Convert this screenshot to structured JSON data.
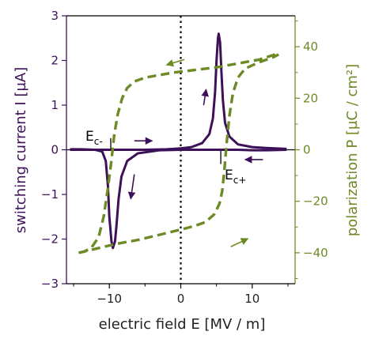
{
  "chart_data": {
    "type": "line",
    "title": "",
    "xlabel": "electric field E [MV / m]",
    "ylabel_left": "switching current I [µA]",
    "ylabel_right": "polarization P [µC / cm²]",
    "xlim": [
      -16,
      16
    ],
    "ylim_left": [
      -3,
      3
    ],
    "ylim_right": [
      -52,
      52
    ],
    "x_ticks": [
      -10,
      0,
      10
    ],
    "x_tick_labels": [
      "−10",
      "0",
      "10"
    ],
    "y_left_ticks": [
      -3,
      -2,
      -1,
      0,
      1,
      2,
      3
    ],
    "y_left_tick_labels": [
      "−3",
      "−2",
      "−1",
      "0",
      "1",
      "2",
      "3"
    ],
    "y_right_ticks": [
      -40,
      -20,
      0,
      20,
      40
    ],
    "y_right_tick_labels": [
      "−40",
      "−20",
      "0",
      "20",
      "40"
    ],
    "grid": false,
    "colors": {
      "current": "#3d1159",
      "polarization": "#6e8a25",
      "axis": "#000000"
    },
    "vline_x": 0,
    "annotations": {
      "ec_minus": "E",
      "ec_minus_sub": "c-",
      "ec_plus": "E",
      "ec_plus_sub": "c+"
    },
    "series": [
      {
        "axis": "left",
        "style": "solid",
        "points": [
          [
            -15.5,
            0.01
          ],
          [
            -14,
            0.01
          ],
          [
            -12,
            0.0
          ],
          [
            -11,
            -0.04
          ],
          [
            -10.5,
            -0.25
          ],
          [
            -10.2,
            -0.8
          ],
          [
            -10.0,
            -1.5
          ],
          [
            -9.7,
            -2.05
          ],
          [
            -9.5,
            -2.2
          ],
          [
            -9.2,
            -2.05
          ],
          [
            -9.0,
            -1.7
          ],
          [
            -8.7,
            -1.1
          ],
          [
            -8.3,
            -0.6
          ],
          [
            -7.5,
            -0.25
          ],
          [
            -6,
            -0.08
          ],
          [
            -3,
            -0.01
          ],
          [
            0,
            0.0
          ],
          [
            3,
            0.0
          ],
          [
            5,
            0.0
          ],
          [
            6,
            0.0
          ],
          [
            8,
            0.0
          ],
          [
            10,
            -0.01
          ],
          [
            12,
            -0.01
          ],
          [
            14.8,
            0.0
          ]
        ]
      },
      {
        "axis": "left",
        "style": "solid",
        "points": [
          [
            -15.5,
            0.0
          ],
          [
            -12,
            0.0
          ],
          [
            -8,
            0.0
          ],
          [
            -5,
            0.0
          ],
          [
            -2,
            0.01
          ],
          [
            0,
            0.03
          ],
          [
            1.5,
            0.06
          ],
          [
            3,
            0.15
          ],
          [
            4,
            0.35
          ],
          [
            4.5,
            0.7
          ],
          [
            4.8,
            1.3
          ],
          [
            5.0,
            2.0
          ],
          [
            5.2,
            2.5
          ],
          [
            5.3,
            2.6
          ],
          [
            5.5,
            2.4
          ],
          [
            5.7,
            1.7
          ],
          [
            5.9,
            1.1
          ],
          [
            6.2,
            0.6
          ],
          [
            6.8,
            0.3
          ],
          [
            8,
            0.12
          ],
          [
            10,
            0.06
          ],
          [
            12,
            0.04
          ],
          [
            14.8,
            0.02
          ]
        ]
      },
      {
        "axis": "right",
        "style": "dashed",
        "points": [
          [
            13.2,
            37
          ],
          [
            11,
            35
          ],
          [
            8,
            33.5
          ],
          [
            5,
            32
          ],
          [
            2,
            31
          ],
          [
            -1,
            30
          ],
          [
            -3,
            29
          ],
          [
            -5,
            28
          ],
          [
            -6.5,
            26.5
          ],
          [
            -7.5,
            24
          ],
          [
            -8.2,
            20
          ],
          [
            -8.8,
            14
          ],
          [
            -9.3,
            6
          ],
          [
            -9.7,
            -4
          ],
          [
            -10.2,
            -15
          ],
          [
            -10.8,
            -26
          ],
          [
            -11.5,
            -34
          ],
          [
            -12.5,
            -38
          ],
          [
            -13.5,
            -39.5
          ],
          [
            -14.3,
            -40
          ]
        ]
      },
      {
        "axis": "right",
        "style": "dashed",
        "points": [
          [
            -14.3,
            -40
          ],
          [
            -12,
            -38.5
          ],
          [
            -9,
            -36.5
          ],
          [
            -6,
            -35
          ],
          [
            -3,
            -33
          ],
          [
            0,
            -31
          ],
          [
            2,
            -29.5
          ],
          [
            3.5,
            -28
          ],
          [
            4.7,
            -25
          ],
          [
            5.4,
            -21
          ],
          [
            5.8,
            -16
          ],
          [
            6.1,
            -8
          ],
          [
            6.4,
            2
          ],
          [
            6.8,
            13
          ],
          [
            7.3,
            22
          ],
          [
            8,
            28
          ],
          [
            9,
            31.5
          ],
          [
            11,
            34
          ],
          [
            13,
            36
          ],
          [
            13.7,
            37
          ]
        ]
      }
    ],
    "arrows": [
      {
        "x": -6.5,
        "y_left": 0.2,
        "dx": 2.5,
        "dy_left": 0.0
      },
      {
        "x": -6.5,
        "y_left": -0.55,
        "dx": -0.5,
        "dy_left": -0.55
      },
      {
        "x": 11.5,
        "y_left": -0.22,
        "dx": -2.5,
        "dy_left": 0.0
      },
      {
        "x": 3.2,
        "y_left": 1.0,
        "dx": 0.35,
        "dy_left": 0.35
      },
      {
        "x": 0.5,
        "y_left": 2.02,
        "dx": -2.5,
        "dy_left": -0.12
      },
      {
        "x": 7.0,
        "y_left": -2.17,
        "dx": 2.4,
        "dy_left": 0.18
      }
    ]
  }
}
